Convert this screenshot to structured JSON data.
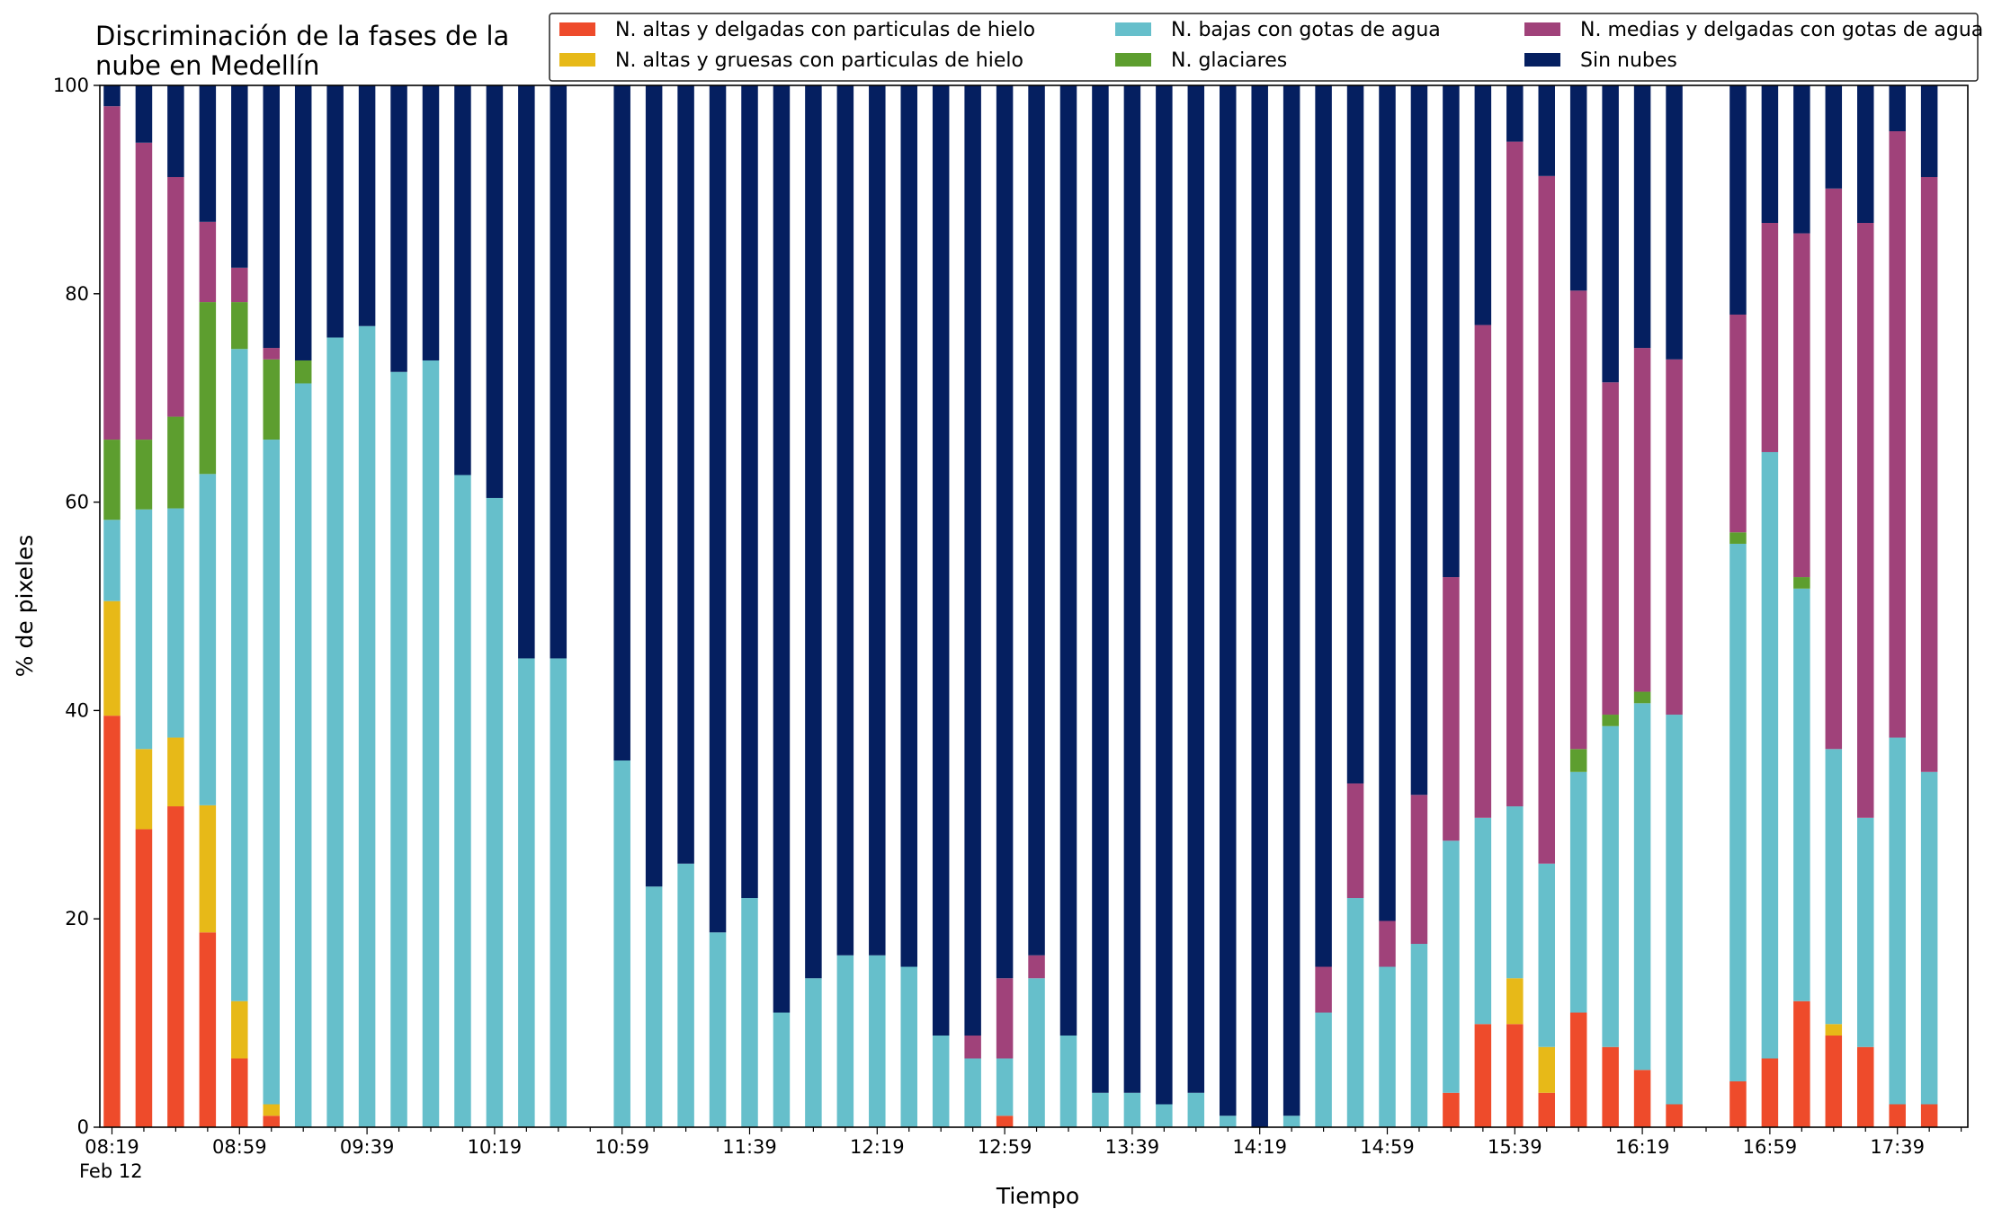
{
  "chart_data": {
    "type": "bar",
    "stacked": true,
    "title_lines": [
      "Discriminación de la fases de la",
      "nube en Medellín"
    ],
    "xlabel": "Tiempo",
    "ylabel": "% de pixeles",
    "ylim": [
      0,
      100
    ],
    "yticks": [
      0,
      20,
      40,
      60,
      80,
      100
    ],
    "xtick_labels": [
      "08:19",
      "08:59",
      "09:39",
      "10:19",
      "10:59",
      "11:39",
      "12:19",
      "12:59",
      "13:39",
      "14:19",
      "14:59",
      "15:39",
      "16:19",
      "16:59",
      "17:39"
    ],
    "xtick_sublabel": "Feb 12",
    "x_interval_minutes": 10,
    "x_slots": 59,
    "legend_position": "top-right",
    "series": [
      {
        "name": "N. altas y delgadas con particulas de hielo",
        "color": "#ee4b2b"
      },
      {
        "name": "N. altas y gruesas con particulas de hielo",
        "color": "#e7b918"
      },
      {
        "name": "N. bajas con gotas de agua",
        "color": "#66bfcb"
      },
      {
        "name": "N. glaciares",
        "color": "#5d9e2f"
      },
      {
        "name": "N. medias y delgadas con gotas de agua",
        "color": "#a0427a"
      },
      {
        "name": "Sin nubes",
        "color": "#051f60"
      }
    ],
    "bars": [
      {
        "slot": 0,
        "values": [
          39.5,
          11.0,
          7.8,
          7.7,
          32.0,
          2.0
        ]
      },
      {
        "slot": 1,
        "values": [
          28.6,
          7.7,
          23.0,
          6.7,
          28.5,
          5.5
        ]
      },
      {
        "slot": 2,
        "values": [
          30.8,
          6.6,
          22.0,
          8.8,
          23.0,
          8.8
        ]
      },
      {
        "slot": 3,
        "values": [
          18.7,
          12.2,
          31.8,
          16.5,
          7.7,
          13.1
        ]
      },
      {
        "slot": 4,
        "values": [
          6.6,
          5.5,
          62.6,
          4.5,
          3.3,
          17.5
        ]
      },
      {
        "slot": 5,
        "values": [
          1.1,
          1.1,
          63.8,
          7.7,
          1.1,
          25.2
        ]
      },
      {
        "slot": 6,
        "values": [
          0,
          0,
          71.4,
          2.2,
          0,
          26.4
        ]
      },
      {
        "slot": 7,
        "values": [
          0,
          0,
          75.8,
          0,
          0,
          24.2
        ]
      },
      {
        "slot": 8,
        "values": [
          0,
          0,
          76.9,
          0,
          0,
          23.1
        ]
      },
      {
        "slot": 9,
        "values": [
          0,
          0,
          72.5,
          0,
          0,
          27.5
        ]
      },
      {
        "slot": 10,
        "values": [
          0,
          0,
          73.6,
          0,
          0,
          26.4
        ]
      },
      {
        "slot": 11,
        "values": [
          0,
          0,
          62.6,
          0,
          0,
          37.4
        ]
      },
      {
        "slot": 12,
        "values": [
          0,
          0,
          60.4,
          0,
          0,
          39.6
        ]
      },
      {
        "slot": 13,
        "values": [
          0,
          0,
          45.0,
          0,
          0,
          55.0
        ]
      },
      {
        "slot": 14,
        "values": [
          0,
          0,
          45.0,
          0,
          0,
          55.0
        ]
      },
      {
        "slot": 16,
        "values": [
          0,
          0,
          35.2,
          0,
          0,
          64.8
        ]
      },
      {
        "slot": 17,
        "values": [
          0,
          0,
          23.1,
          0,
          0,
          76.9
        ]
      },
      {
        "slot": 18,
        "values": [
          0,
          0,
          25.3,
          0,
          0,
          74.7
        ]
      },
      {
        "slot": 19,
        "values": [
          0,
          0,
          18.7,
          0,
          0,
          81.3
        ]
      },
      {
        "slot": 20,
        "values": [
          0,
          0,
          22.0,
          0,
          0,
          78.0
        ]
      },
      {
        "slot": 21,
        "values": [
          0,
          0,
          11.0,
          0,
          0,
          89.0
        ]
      },
      {
        "slot": 22,
        "values": [
          0,
          0,
          14.3,
          0,
          0,
          85.7
        ]
      },
      {
        "slot": 23,
        "values": [
          0,
          0,
          16.5,
          0,
          0,
          83.5
        ]
      },
      {
        "slot": 24,
        "values": [
          0,
          0,
          16.5,
          0,
          0,
          83.5
        ]
      },
      {
        "slot": 25,
        "values": [
          0,
          0,
          15.4,
          0,
          0,
          84.6
        ]
      },
      {
        "slot": 26,
        "values": [
          0,
          0,
          8.8,
          0,
          0,
          91.2
        ]
      },
      {
        "slot": 27,
        "values": [
          0,
          0,
          6.6,
          0,
          2.2,
          91.2
        ]
      },
      {
        "slot": 28,
        "values": [
          1.1,
          0,
          5.5,
          0,
          7.7,
          85.7
        ]
      },
      {
        "slot": 29,
        "values": [
          0,
          0,
          14.3,
          0,
          2.2,
          83.5
        ]
      },
      {
        "slot": 30,
        "values": [
          0,
          0,
          8.8,
          0,
          0,
          91.2
        ]
      },
      {
        "slot": 31,
        "values": [
          0,
          0,
          3.3,
          0,
          0,
          96.7
        ]
      },
      {
        "slot": 32,
        "values": [
          0,
          0,
          3.3,
          0,
          0,
          96.7
        ]
      },
      {
        "slot": 33,
        "values": [
          0,
          0,
          2.2,
          0,
          0,
          97.8
        ]
      },
      {
        "slot": 34,
        "values": [
          0,
          0,
          3.3,
          0,
          0,
          96.7
        ]
      },
      {
        "slot": 35,
        "values": [
          0,
          0,
          1.1,
          0,
          0,
          98.9
        ]
      },
      {
        "slot": 36,
        "values": [
          0,
          0,
          0,
          0,
          0,
          100
        ]
      },
      {
        "slot": 37,
        "values": [
          0,
          0,
          1.1,
          0,
          0,
          98.9
        ]
      },
      {
        "slot": 38,
        "values": [
          0,
          0,
          11.0,
          0,
          4.4,
          84.6
        ]
      },
      {
        "slot": 39,
        "values": [
          0,
          0,
          22.0,
          0,
          11.0,
          67.0
        ]
      },
      {
        "slot": 40,
        "values": [
          0,
          0,
          15.4,
          0,
          4.4,
          80.2
        ]
      },
      {
        "slot": 41,
        "values": [
          0,
          0,
          17.6,
          0,
          14.3,
          68.1
        ]
      },
      {
        "slot": 42,
        "values": [
          3.3,
          0,
          24.2,
          0,
          25.3,
          47.2
        ]
      },
      {
        "slot": 43,
        "values": [
          9.9,
          0,
          19.8,
          0,
          47.3,
          23.0
        ]
      },
      {
        "slot": 44,
        "values": [
          9.9,
          4.4,
          16.5,
          0,
          63.8,
          5.4
        ]
      },
      {
        "slot": 45,
        "values": [
          3.3,
          4.4,
          17.6,
          0,
          66.0,
          8.7
        ]
      },
      {
        "slot": 46,
        "values": [
          11.0,
          0,
          23.1,
          2.2,
          44.0,
          19.7
        ]
      },
      {
        "slot": 47,
        "values": [
          7.7,
          0,
          30.8,
          1.1,
          31.9,
          28.5
        ]
      },
      {
        "slot": 48,
        "values": [
          5.5,
          0,
          35.2,
          1.1,
          33.0,
          25.2
        ]
      },
      {
        "slot": 49,
        "values": [
          2.2,
          0,
          37.4,
          0,
          34.1,
          26.3
        ]
      },
      {
        "slot": 51,
        "values": [
          4.4,
          0,
          51.6,
          1.1,
          20.9,
          22.0
        ]
      },
      {
        "slot": 52,
        "values": [
          6.6,
          0,
          58.2,
          0,
          22.0,
          13.2
        ]
      },
      {
        "slot": 53,
        "values": [
          12.1,
          0,
          39.6,
          1.1,
          33.0,
          14.2
        ]
      },
      {
        "slot": 54,
        "values": [
          8.8,
          1.1,
          26.4,
          0,
          53.8,
          9.9
        ]
      },
      {
        "slot": 55,
        "values": [
          7.7,
          0,
          22.0,
          0,
          57.1,
          13.2
        ]
      },
      {
        "slot": 56,
        "values": [
          2.2,
          0,
          35.2,
          0,
          58.2,
          4.4
        ]
      },
      {
        "slot": 57,
        "values": [
          2.2,
          0,
          31.9,
          0,
          57.1,
          8.8
        ]
      }
    ]
  }
}
